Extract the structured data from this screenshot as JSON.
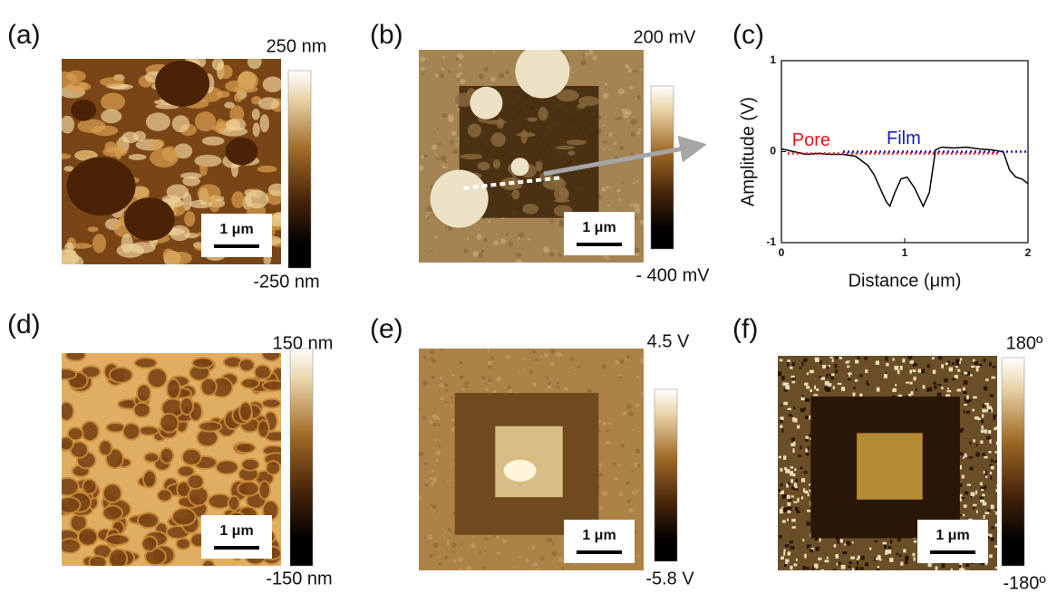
{
  "panels": [
    {
      "label": "(a)",
      "colorbar_max": "250 nm",
      "colorbar_min": "-250 nm",
      "scale_bar": "1 μm"
    },
    {
      "label": "(b)",
      "colorbar_max": "200 mV",
      "colorbar_min": "- 400 mV",
      "scale_bar": "1 μm"
    },
    {
      "label": "(c)"
    },
    {
      "label": "(d)",
      "colorbar_max": "150 nm",
      "colorbar_min": "-150 nm",
      "scale_bar": "1 μm"
    },
    {
      "label": "(e)",
      "colorbar_max": "4.5 V",
      "colorbar_min": "-5.8 V",
      "scale_bar": "1 μm"
    },
    {
      "label": "(f)",
      "colorbar_max": "180º",
      "colorbar_min": "-180º",
      "scale_bar": "1 μm"
    }
  ],
  "chart_data": {
    "type": "line",
    "x_label": "Distance (μm)",
    "y_label": "Amplitude (V)",
    "xlim": [
      0,
      2
    ],
    "ylim": [
      -1,
      1
    ],
    "xticks": [
      0,
      1,
      2
    ],
    "yticks": [
      -1,
      0,
      1
    ],
    "series": [
      {
        "color": "#000000",
        "x": [
          0,
          0.1,
          0.2,
          0.3,
          0.4,
          0.5,
          0.6,
          0.7,
          0.75,
          0.8,
          0.85,
          0.88,
          0.92,
          0.97,
          1.02,
          1.08,
          1.15,
          1.2,
          1.25,
          1.3,
          1.4,
          1.5,
          1.6,
          1.7,
          1.8,
          1.85,
          1.9,
          1.95,
          2
        ],
        "values": [
          0.03,
          0,
          -0.03,
          -0.02,
          -0.03,
          -0.03,
          -0.05,
          -0.15,
          -0.25,
          -0.4,
          -0.55,
          -0.6,
          -0.45,
          -0.3,
          -0.28,
          -0.4,
          -0.6,
          -0.45,
          0.02,
          0.05,
          0.04,
          0.05,
          0.03,
          0.02,
          0,
          -0.2,
          -0.28,
          -0.3,
          -0.35
        ]
      },
      {
        "name": "Pore",
        "color": "#e8141c",
        "x": [
          0.05,
          1.78
        ],
        "values": [
          -0.02,
          -0.02
        ]
      },
      {
        "name": "Film",
        "color": "#1a1ab8",
        "x": [
          0.5,
          2
        ],
        "values": [
          0,
          0
        ]
      }
    ]
  }
}
